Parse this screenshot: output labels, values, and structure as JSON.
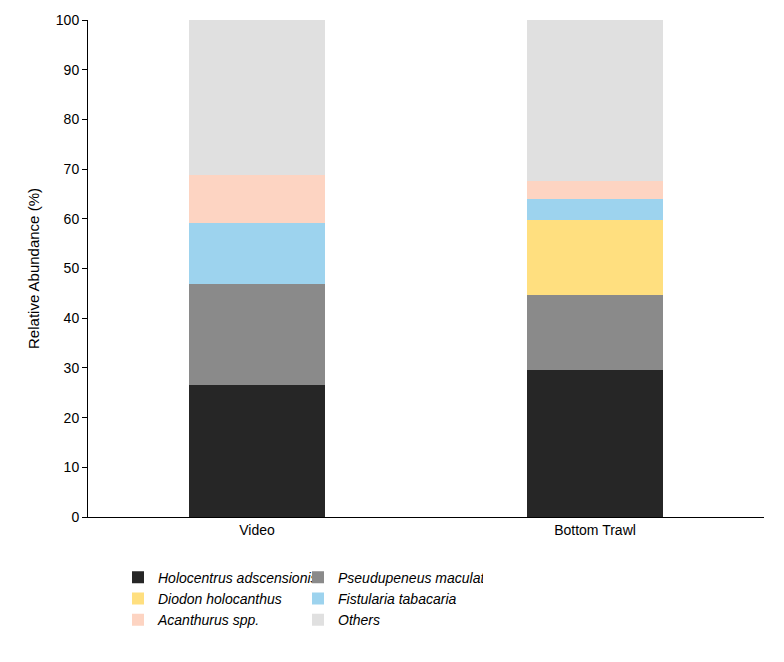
{
  "chart_data": {
    "type": "bar",
    "stacked": true,
    "y_label": "Relative Abundance (%)",
    "categories": [
      "Video",
      "Bottom Trawl"
    ],
    "series": [
      {
        "name": "Holocentrus adscensionis",
        "color": "#262626",
        "values": [
          26.5,
          29.6
        ]
      },
      {
        "name": "Pseudupeneus maculatus",
        "color": "#8a8a8a",
        "values": [
          20.3,
          15.1
        ]
      },
      {
        "name": "Diodon holocanthus",
        "color": "#ffdf7f",
        "values": [
          0,
          15.1
        ]
      },
      {
        "name": "Fistularia tabacaria",
        "color": "#9dd3ee",
        "values": [
          12.4,
          4.2
        ]
      },
      {
        "name": "Acanthurus spp.",
        "color": "#fdd4c2",
        "values": [
          9.7,
          3.6
        ]
      },
      {
        "name": "Others",
        "color": "#e0e0e0",
        "values": [
          31.1,
          32.4
        ]
      }
    ],
    "ylim": [
      0,
      100
    ],
    "yticks": [
      0,
      10,
      20,
      30,
      40,
      50,
      60,
      70,
      80,
      90,
      100
    ],
    "grid": false,
    "legend": "bottom"
  }
}
